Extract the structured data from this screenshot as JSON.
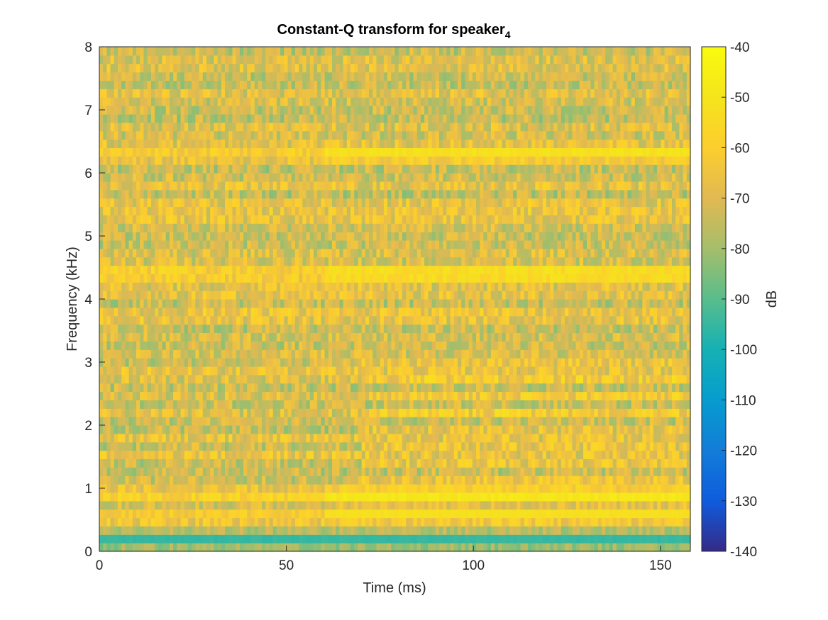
{
  "chart_data": {
    "type": "heatmap",
    "title": "Constant-Q transform for speaker",
    "title_subscript": "4",
    "xlabel": "Time (ms)",
    "ylabel": "Frequency (kHz)",
    "xlim": [
      0,
      158
    ],
    "ylim": [
      0,
      8
    ],
    "xticks": [
      0,
      50,
      100,
      150
    ],
    "xtick_labels": [
      "0",
      "50",
      "100",
      "150"
    ],
    "yticks": [
      0,
      1,
      2,
      3,
      4,
      5,
      6,
      7,
      8
    ],
    "ytick_labels": [
      "0",
      "1",
      "2",
      "3",
      "4",
      "5",
      "6",
      "7",
      "8"
    ],
    "grid": false,
    "colormap": "parula",
    "colorbar": {
      "label": "dB",
      "limits": [
        -140,
        -40
      ],
      "ticks": [
        -40,
        -50,
        -60,
        -70,
        -80,
        -90,
        -100,
        -110,
        -120,
        -130,
        -140
      ],
      "tick_labels": [
        "-40",
        "-50",
        "-60",
        "-70",
        "-80",
        "-90",
        "-100",
        "-110",
        "-120",
        "-130",
        "-140"
      ]
    },
    "background_level_db": -70,
    "features": [
      {
        "description": "low-frequency band",
        "freq_khz": 0.2,
        "level_db": -98
      },
      {
        "description": "formant ~0.6 kHz",
        "freq_khz": 0.6,
        "level_db": -50
      },
      {
        "description": "formant ~0.9 kHz",
        "freq_khz": 0.9,
        "level_db": -43
      },
      {
        "description": "band ~4.4 kHz",
        "freq_khz": 4.4,
        "level_db": -45
      },
      {
        "description": "band ~6.3 kHz",
        "freq_khz": 6.3,
        "level_db": -45
      }
    ]
  }
}
